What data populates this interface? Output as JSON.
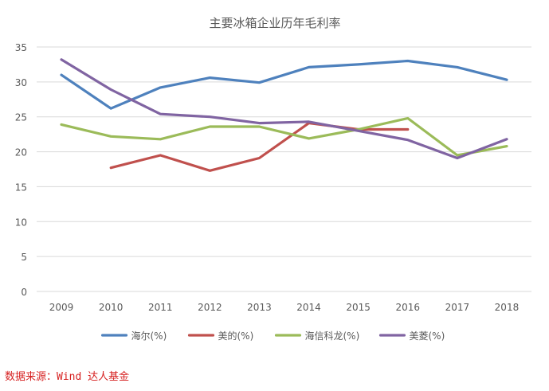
{
  "chart_data": {
    "type": "line",
    "title": "主要冰箱企业历年毛利率",
    "categories": [
      "2009",
      "2010",
      "2011",
      "2012",
      "2013",
      "2014",
      "2015",
      "2016",
      "2017",
      "2018"
    ],
    "ylim": [
      0,
      35
    ],
    "yticks": [
      0,
      5,
      10,
      15,
      20,
      25,
      30,
      35
    ],
    "grid": true,
    "legend_position": "bottom",
    "series": [
      {
        "name": "海尔(%)",
        "color": "#4e81bd",
        "values": [
          31.0,
          26.2,
          29.2,
          30.6,
          29.9,
          32.1,
          32.5,
          33.0,
          32.1,
          30.3
        ]
      },
      {
        "name": "美的(%)",
        "color": "#c0504d",
        "values": [
          null,
          17.7,
          19.5,
          17.3,
          19.1,
          24.1,
          23.2,
          23.2,
          null,
          null
        ]
      },
      {
        "name": "海信科龙(%)",
        "color": "#9bbb59",
        "values": [
          23.9,
          22.2,
          21.8,
          23.6,
          23.6,
          21.9,
          23.2,
          24.8,
          19.5,
          20.8
        ]
      },
      {
        "name": "美菱(%)",
        "color": "#8064a2",
        "values": [
          33.2,
          28.9,
          25.4,
          25.0,
          24.1,
          24.3,
          23.0,
          21.7,
          19.1,
          21.8
        ]
      }
    ]
  },
  "source": "数据来源：Wind 达人基金"
}
